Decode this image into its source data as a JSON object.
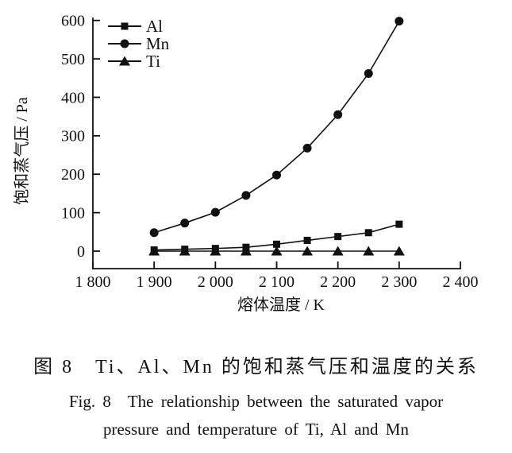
{
  "figure_caption": {
    "line_cn": "图 8　Ti、Al、Mn 的饱和蒸气压和温度的关系",
    "line_en_1": "Fig. 8　The relationship between the saturated vapor",
    "line_en_2": "pressure and temperature of Ti, Al and Mn"
  },
  "chart_data": {
    "type": "line",
    "title": "",
    "xlabel": "熔体温度 / K",
    "ylabel": "饱和蒸气压 / Pa",
    "xlim": [
      1800,
      2400
    ],
    "ylim": [
      0,
      600
    ],
    "x_tick_labels": [
      "1 800",
      "1 900",
      "2 000",
      "2 100",
      "2 200",
      "2 300",
      "2 400"
    ],
    "x_tick_values": [
      1800,
      1900,
      2000,
      2100,
      2200,
      2300,
      2400
    ],
    "y_tick_values": [
      0,
      100,
      200,
      300,
      400,
      500,
      600
    ],
    "grid": false,
    "legend_position": "top-left inside",
    "line_color": "#111111",
    "x": [
      1900,
      1950,
      2000,
      2050,
      2100,
      2150,
      2200,
      2250,
      2300
    ],
    "series": [
      {
        "name": "Al",
        "marker": "square",
        "values": [
          3,
          5,
          7,
          10,
          18,
          28,
          38,
          48,
          70
        ]
      },
      {
        "name": "Mn",
        "marker": "circle",
        "values": [
          48,
          73,
          101,
          145,
          198,
          268,
          355,
          462,
          598
        ]
      },
      {
        "name": "Ti",
        "marker": "triangle",
        "values": [
          0,
          0,
          0,
          0,
          0,
          0,
          0,
          0,
          0
        ]
      }
    ]
  }
}
